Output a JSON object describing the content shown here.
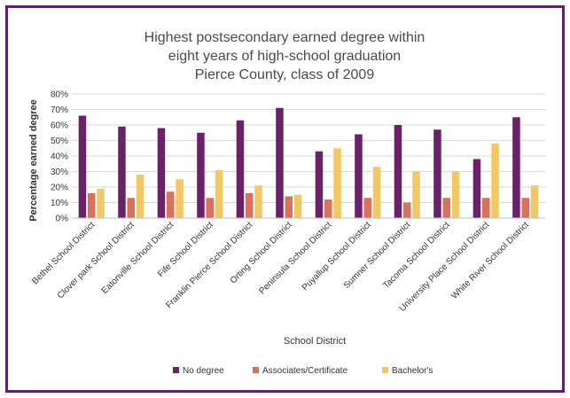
{
  "chart_data": {
    "type": "bar",
    "title_lines": [
      "Highest postsecondary earned degree within",
      "eight years of high-school graduation",
      "Pierce County, class of 2009"
    ],
    "xlabel": "School District",
    "ylabel": "Percentage earned degree",
    "ylim": [
      0,
      80
    ],
    "yticks": [
      "0%",
      "10%",
      "20%",
      "30%",
      "40%",
      "50%",
      "60%",
      "70%",
      "80%"
    ],
    "grid": true,
    "legend_position": "bottom",
    "categories": [
      "Bethel School District",
      "Clover park School District",
      "Eatonville School District",
      "Fife School District",
      "Franklin Pierce School District",
      "Orting School District",
      "Peninsula School District",
      "Puyallup School District",
      "Sumner School District",
      "Tacoma School District",
      "University Place School District",
      "White River School District"
    ],
    "series": [
      {
        "name": "No degree",
        "color": "#6b2168",
        "values": [
          66,
          59,
          58,
          55,
          63,
          71,
          43,
          54,
          60,
          57,
          38,
          65
        ]
      },
      {
        "name": "Associates/Certificate",
        "color": "#d9715b",
        "values": [
          16,
          13,
          17,
          13,
          16,
          14,
          12,
          13,
          10,
          13,
          13,
          13
        ]
      },
      {
        "name": "Bachelor's",
        "color": "#f0c965",
        "values": [
          19,
          28,
          25,
          31,
          21,
          15,
          45,
          33,
          30,
          30,
          48,
          21
        ]
      }
    ]
  }
}
